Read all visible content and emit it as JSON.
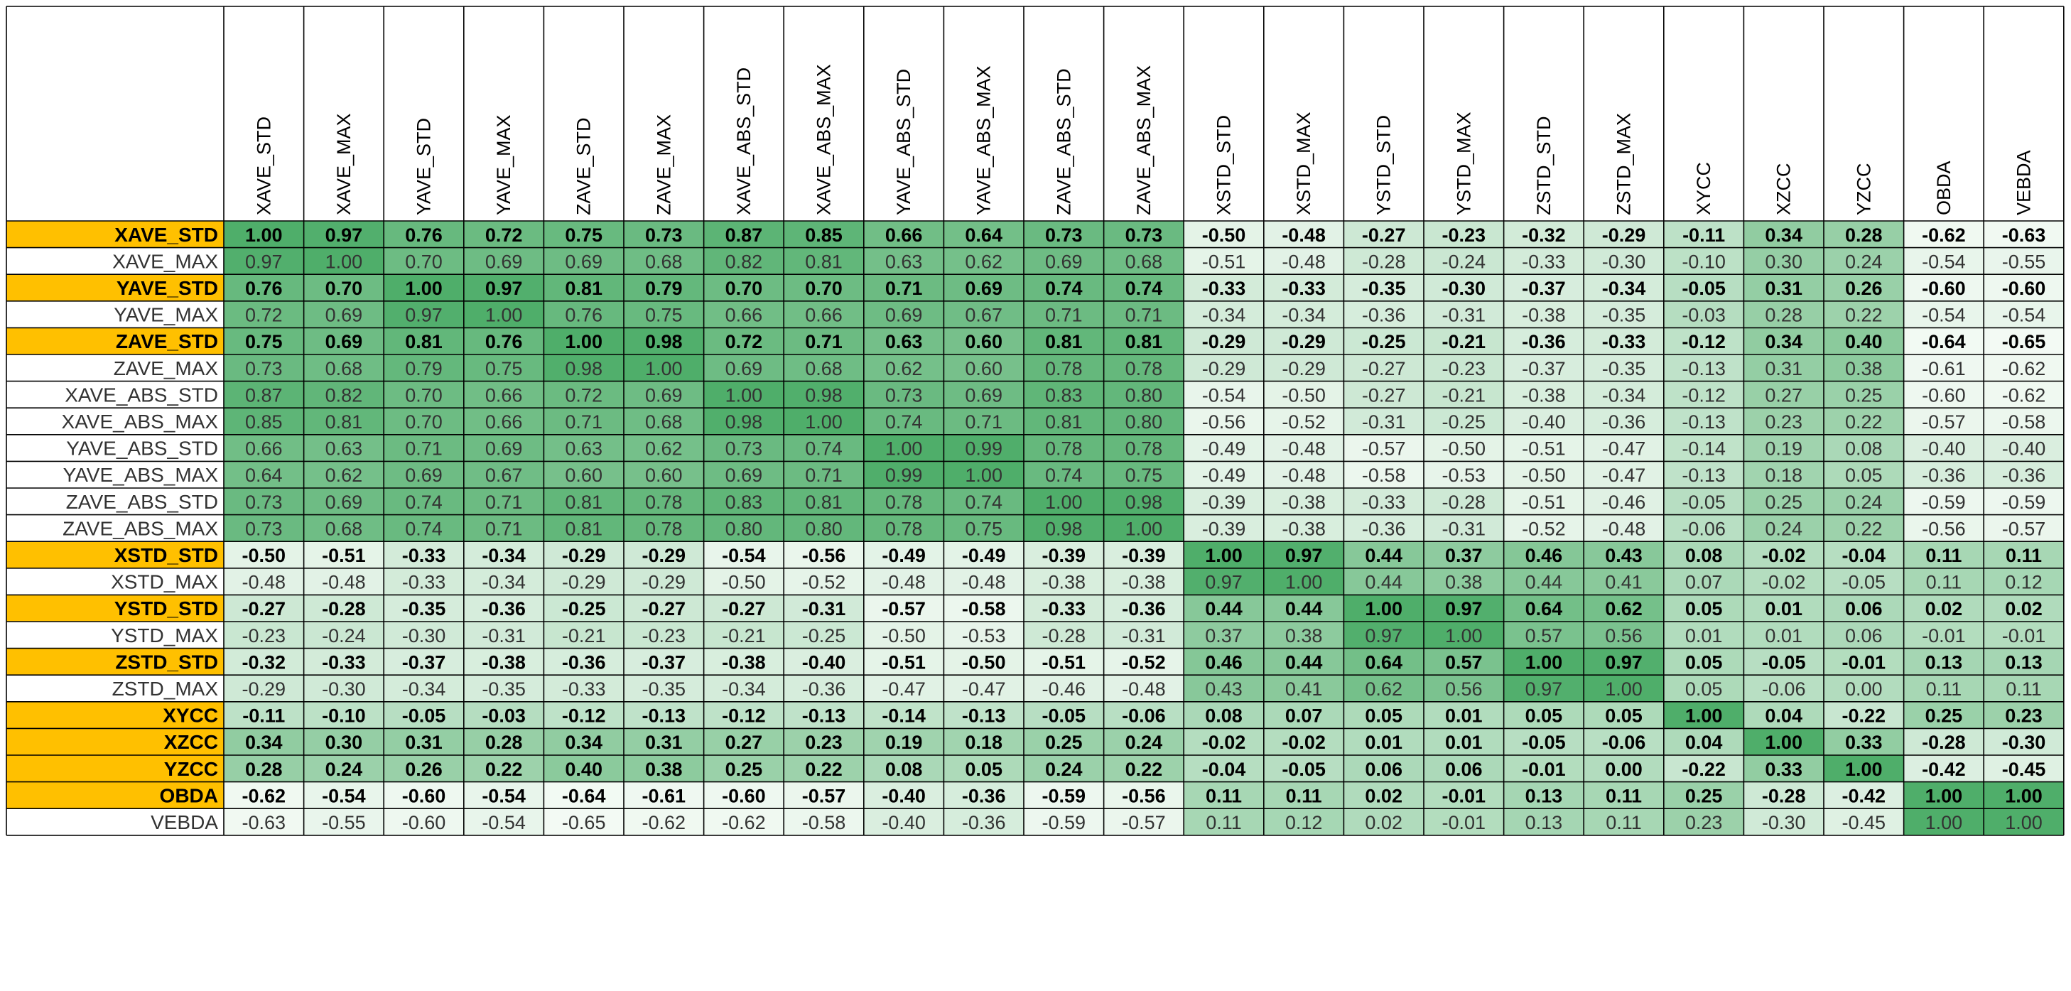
{
  "colors": {
    "highlight_row": "#FFC000",
    "scale_low": "#F3FAF4",
    "scale_high": "#4FAE6A",
    "grid": "#000000",
    "text": "#000000",
    "row_label_plain": "#333333"
  },
  "chart_data": {
    "type": "heatmap",
    "title": "",
    "color_scale": "white-to-green (lowest value lightest, highest value darkest)",
    "grid": true,
    "columns": [
      "XAVE_STD",
      "XAVE_MAX",
      "YAVE_STD",
      "YAVE_MAX",
      "ZAVE_STD",
      "ZAVE_MAX",
      "XAVE_ABS_STD",
      "XAVE_ABS_MAX",
      "YAVE_ABS_STD",
      "YAVE_ABS_MAX",
      "ZAVE_ABS_STD",
      "ZAVE_ABS_MAX",
      "XSTD_STD",
      "XSTD_MAX",
      "YSTD_STD",
      "YSTD_MAX",
      "ZSTD_STD",
      "ZSTD_MAX",
      "XYCC",
      "XZCC",
      "YZCC",
      "OBDA",
      "VEBDA"
    ],
    "rows": [
      {
        "label": "XAVE_STD",
        "highlight": true,
        "values": [
          "1.00",
          "0.97",
          "0.76",
          "0.72",
          "0.75",
          "0.73",
          "0.87",
          "0.85",
          "0.66",
          "0.64",
          "0.73",
          "0.73",
          "-0.50",
          "-0.48",
          "-0.27",
          "-0.23",
          "-0.32",
          "-0.29",
          "-0.11",
          "0.34",
          "0.28",
          "-0.62",
          "-0.63"
        ]
      },
      {
        "label": "XAVE_MAX",
        "highlight": false,
        "values": [
          "0.97",
          "1.00",
          "0.70",
          "0.69",
          "0.69",
          "0.68",
          "0.82",
          "0.81",
          "0.63",
          "0.62",
          "0.69",
          "0.68",
          "-0.51",
          "-0.48",
          "-0.28",
          "-0.24",
          "-0.33",
          "-0.30",
          "-0.10",
          "0.30",
          "0.24",
          "-0.54",
          "-0.55"
        ]
      },
      {
        "label": "YAVE_STD",
        "highlight": true,
        "values": [
          "0.76",
          "0.70",
          "1.00",
          "0.97",
          "0.81",
          "0.79",
          "0.70",
          "0.70",
          "0.71",
          "0.69",
          "0.74",
          "0.74",
          "-0.33",
          "-0.33",
          "-0.35",
          "-0.30",
          "-0.37",
          "-0.34",
          "-0.05",
          "0.31",
          "0.26",
          "-0.60",
          "-0.60"
        ]
      },
      {
        "label": "YAVE_MAX",
        "highlight": false,
        "values": [
          "0.72",
          "0.69",
          "0.97",
          "1.00",
          "0.76",
          "0.75",
          "0.66",
          "0.66",
          "0.69",
          "0.67",
          "0.71",
          "0.71",
          "-0.34",
          "-0.34",
          "-0.36",
          "-0.31",
          "-0.38",
          "-0.35",
          "-0.03",
          "0.28",
          "0.22",
          "-0.54",
          "-0.54"
        ]
      },
      {
        "label": "ZAVE_STD",
        "highlight": true,
        "values": [
          "0.75",
          "0.69",
          "0.81",
          "0.76",
          "1.00",
          "0.98",
          "0.72",
          "0.71",
          "0.63",
          "0.60",
          "0.81",
          "0.81",
          "-0.29",
          "-0.29",
          "-0.25",
          "-0.21",
          "-0.36",
          "-0.33",
          "-0.12",
          "0.34",
          "0.40",
          "-0.64",
          "-0.65"
        ]
      },
      {
        "label": "ZAVE_MAX",
        "highlight": false,
        "values": [
          "0.73",
          "0.68",
          "0.79",
          "0.75",
          "0.98",
          "1.00",
          "0.69",
          "0.68",
          "0.62",
          "0.60",
          "0.78",
          "0.78",
          "-0.29",
          "-0.29",
          "-0.27",
          "-0.23",
          "-0.37",
          "-0.35",
          "-0.13",
          "0.31",
          "0.38",
          "-0.61",
          "-0.62"
        ]
      },
      {
        "label": "XAVE_ABS_STD",
        "highlight": false,
        "values": [
          "0.87",
          "0.82",
          "0.70",
          "0.66",
          "0.72",
          "0.69",
          "1.00",
          "0.98",
          "0.73",
          "0.69",
          "0.83",
          "0.80",
          "-0.54",
          "-0.50",
          "-0.27",
          "-0.21",
          "-0.38",
          "-0.34",
          "-0.12",
          "0.27",
          "0.25",
          "-0.60",
          "-0.62"
        ]
      },
      {
        "label": "XAVE_ABS_MAX",
        "highlight": false,
        "values": [
          "0.85",
          "0.81",
          "0.70",
          "0.66",
          "0.71",
          "0.68",
          "0.98",
          "1.00",
          "0.74",
          "0.71",
          "0.81",
          "0.80",
          "-0.56",
          "-0.52",
          "-0.31",
          "-0.25",
          "-0.40",
          "-0.36",
          "-0.13",
          "0.23",
          "0.22",
          "-0.57",
          "-0.58"
        ]
      },
      {
        "label": "YAVE_ABS_STD",
        "highlight": false,
        "values": [
          "0.66",
          "0.63",
          "0.71",
          "0.69",
          "0.63",
          "0.62",
          "0.73",
          "0.74",
          "1.00",
          "0.99",
          "0.78",
          "0.78",
          "-0.49",
          "-0.48",
          "-0.57",
          "-0.50",
          "-0.51",
          "-0.47",
          "-0.14",
          "0.19",
          "0.08",
          "-0.40",
          "-0.40"
        ]
      },
      {
        "label": "YAVE_ABS_MAX",
        "highlight": false,
        "values": [
          "0.64",
          "0.62",
          "0.69",
          "0.67",
          "0.60",
          "0.60",
          "0.69",
          "0.71",
          "0.99",
          "1.00",
          "0.74",
          "0.75",
          "-0.49",
          "-0.48",
          "-0.58",
          "-0.53",
          "-0.50",
          "-0.47",
          "-0.13",
          "0.18",
          "0.05",
          "-0.36",
          "-0.36"
        ]
      },
      {
        "label": "ZAVE_ABS_STD",
        "highlight": false,
        "values": [
          "0.73",
          "0.69",
          "0.74",
          "0.71",
          "0.81",
          "0.78",
          "0.83",
          "0.81",
          "0.78",
          "0.74",
          "1.00",
          "0.98",
          "-0.39",
          "-0.38",
          "-0.33",
          "-0.28",
          "-0.51",
          "-0.46",
          "-0.05",
          "0.25",
          "0.24",
          "-0.59",
          "-0.59"
        ]
      },
      {
        "label": "ZAVE_ABS_MAX",
        "highlight": false,
        "values": [
          "0.73",
          "0.68",
          "0.74",
          "0.71",
          "0.81",
          "0.78",
          "0.80",
          "0.80",
          "0.78",
          "0.75",
          "0.98",
          "1.00",
          "-0.39",
          "-0.38",
          "-0.36",
          "-0.31",
          "-0.52",
          "-0.48",
          "-0.06",
          "0.24",
          "0.22",
          "-0.56",
          "-0.57"
        ]
      },
      {
        "label": "XSTD_STD",
        "highlight": true,
        "values": [
          "-0.50",
          "-0.51",
          "-0.33",
          "-0.34",
          "-0.29",
          "-0.29",
          "-0.54",
          "-0.56",
          "-0.49",
          "-0.49",
          "-0.39",
          "-0.39",
          "1.00",
          "0.97",
          "0.44",
          "0.37",
          "0.46",
          "0.43",
          "0.08",
          "-0.02",
          "-0.04",
          "0.11",
          "0.11"
        ]
      },
      {
        "label": "XSTD_MAX",
        "highlight": false,
        "values": [
          "-0.48",
          "-0.48",
          "-0.33",
          "-0.34",
          "-0.29",
          "-0.29",
          "-0.50",
          "-0.52",
          "-0.48",
          "-0.48",
          "-0.38",
          "-0.38",
          "0.97",
          "1.00",
          "0.44",
          "0.38",
          "0.44",
          "0.41",
          "0.07",
          "-0.02",
          "-0.05",
          "0.11",
          "0.12"
        ]
      },
      {
        "label": "YSTD_STD",
        "highlight": true,
        "values": [
          "-0.27",
          "-0.28",
          "-0.35",
          "-0.36",
          "-0.25",
          "-0.27",
          "-0.27",
          "-0.31",
          "-0.57",
          "-0.58",
          "-0.33",
          "-0.36",
          "0.44",
          "0.44",
          "1.00",
          "0.97",
          "0.64",
          "0.62",
          "0.05",
          "0.01",
          "0.06",
          "0.02",
          "0.02"
        ]
      },
      {
        "label": "YSTD_MAX",
        "highlight": false,
        "values": [
          "-0.23",
          "-0.24",
          "-0.30",
          "-0.31",
          "-0.21",
          "-0.23",
          "-0.21",
          "-0.25",
          "-0.50",
          "-0.53",
          "-0.28",
          "-0.31",
          "0.37",
          "0.38",
          "0.97",
          "1.00",
          "0.57",
          "0.56",
          "0.01",
          "0.01",
          "0.06",
          "-0.01",
          "-0.01"
        ]
      },
      {
        "label": "ZSTD_STD",
        "highlight": true,
        "values": [
          "-0.32",
          "-0.33",
          "-0.37",
          "-0.38",
          "-0.36",
          "-0.37",
          "-0.38",
          "-0.40",
          "-0.51",
          "-0.50",
          "-0.51",
          "-0.52",
          "0.46",
          "0.44",
          "0.64",
          "0.57",
          "1.00",
          "0.97",
          "0.05",
          "-0.05",
          "-0.01",
          "0.13",
          "0.13"
        ]
      },
      {
        "label": "ZSTD_MAX",
        "highlight": false,
        "values": [
          "-0.29",
          "-0.30",
          "-0.34",
          "-0.35",
          "-0.33",
          "-0.35",
          "-0.34",
          "-0.36",
          "-0.47",
          "-0.47",
          "-0.46",
          "-0.48",
          "0.43",
          "0.41",
          "0.62",
          "0.56",
          "0.97",
          "1.00",
          "0.05",
          "-0.06",
          "0.00",
          "0.11",
          "0.11"
        ]
      },
      {
        "label": "XYCC",
        "highlight": true,
        "values": [
          "-0.11",
          "-0.10",
          "-0.05",
          "-0.03",
          "-0.12",
          "-0.13",
          "-0.12",
          "-0.13",
          "-0.14",
          "-0.13",
          "-0.05",
          "-0.06",
          "0.08",
          "0.07",
          "0.05",
          "0.01",
          "0.05",
          "0.05",
          "1.00",
          "0.04",
          "-0.22",
          "0.25",
          "0.23"
        ]
      },
      {
        "label": "XZCC",
        "highlight": true,
        "values": [
          "0.34",
          "0.30",
          "0.31",
          "0.28",
          "0.34",
          "0.31",
          "0.27",
          "0.23",
          "0.19",
          "0.18",
          "0.25",
          "0.24",
          "-0.02",
          "-0.02",
          "0.01",
          "0.01",
          "-0.05",
          "-0.06",
          "0.04",
          "1.00",
          "0.33",
          "-0.28",
          "-0.30"
        ]
      },
      {
        "label": "YZCC",
        "highlight": true,
        "values": [
          "0.28",
          "0.24",
          "0.26",
          "0.22",
          "0.40",
          "0.38",
          "0.25",
          "0.22",
          "0.08",
          "0.05",
          "0.24",
          "0.22",
          "-0.04",
          "-0.05",
          "0.06",
          "0.06",
          "-0.01",
          "0.00",
          "-0.22",
          "0.33",
          "1.00",
          "-0.42",
          "-0.45"
        ]
      },
      {
        "label": "OBDA",
        "highlight": true,
        "values": [
          "-0.62",
          "-0.54",
          "-0.60",
          "-0.54",
          "-0.64",
          "-0.61",
          "-0.60",
          "-0.57",
          "-0.40",
          "-0.36",
          "-0.59",
          "-0.56",
          "0.11",
          "0.11",
          "0.02",
          "-0.01",
          "0.13",
          "0.11",
          "0.25",
          "-0.28",
          "-0.42",
          "1.00",
          "1.00"
        ]
      },
      {
        "label": "VEBDA",
        "highlight": false,
        "values": [
          "-0.63",
          "-0.55",
          "-0.60",
          "-0.54",
          "-0.65",
          "-0.62",
          "-0.62",
          "-0.58",
          "-0.40",
          "-0.36",
          "-0.59",
          "-0.57",
          "0.11",
          "0.12",
          "0.02",
          "-0.01",
          "0.13",
          "0.11",
          "0.23",
          "-0.30",
          "-0.45",
          "1.00",
          "1.00"
        ]
      }
    ]
  }
}
